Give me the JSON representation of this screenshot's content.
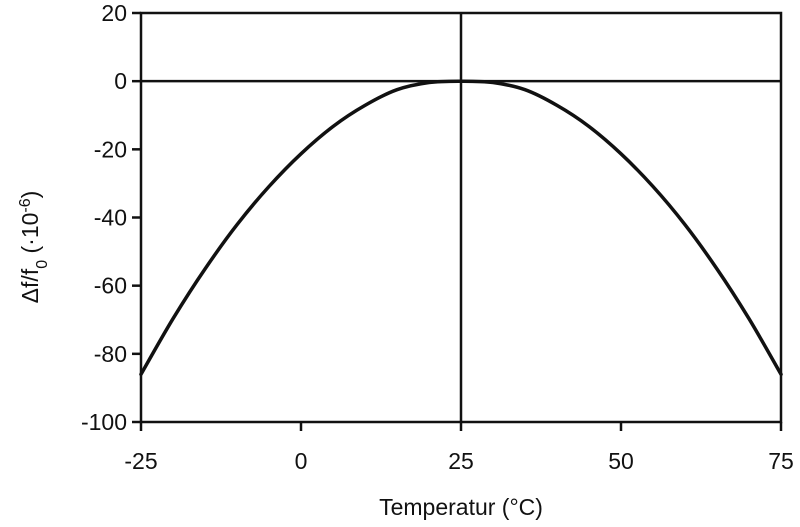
{
  "chart_data": {
    "type": "line",
    "xlabel": "Temperatur (°C)",
    "ylabel": {
      "main": "Δf/f",
      "sub": "0",
      "mid": " (·10",
      "sup": "-6",
      "end": ")"
    },
    "xlim": [
      -25,
      75
    ],
    "ylim": [
      -100,
      20
    ],
    "xticks": [
      -25,
      0,
      25,
      50,
      75
    ],
    "xtick_labels": [
      "-25",
      "0",
      "25",
      "50",
      "75"
    ],
    "yticks": [
      20,
      0,
      -20,
      -40,
      -60,
      -80,
      -100
    ],
    "ytick_labels": [
      "20",
      "0",
      "-20",
      "-40",
      "-60",
      "-80",
      "-100"
    ],
    "reference_lines": {
      "x": 25,
      "y": 0
    },
    "grid": false,
    "series": [
      {
        "x": [
          -25,
          -20,
          -15,
          -10,
          -5,
          0,
          5,
          10,
          15,
          20,
          25,
          30,
          35,
          40,
          45,
          50,
          55,
          60,
          65,
          70,
          75
        ],
        "y": [
          -86,
          -69.7,
          -55.1,
          -42.1,
          -30.9,
          -21.3,
          -13.3,
          -7.1,
          -2.5,
          -0.4,
          0,
          -0.4,
          -2.5,
          -7.1,
          -13.3,
          -21.3,
          -30.9,
          -42.1,
          -55.1,
          -69.7,
          -86
        ]
      }
    ],
    "colors": {
      "line": "#111111",
      "frame": "#111111"
    }
  }
}
